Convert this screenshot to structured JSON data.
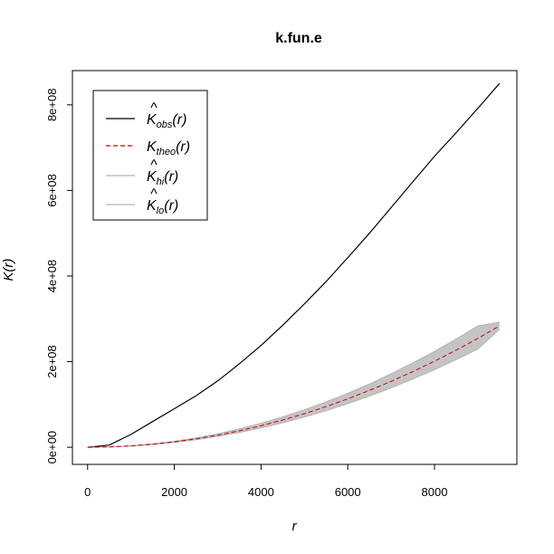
{
  "chart_data": {
    "type": "line",
    "title": "k.fun.e",
    "xlabel": "r",
    "ylabel": "K(r)",
    "xlim": [
      -350,
      9900
    ],
    "ylim": [
      -40000000,
      880000000
    ],
    "x_ticks": [
      0,
      2000,
      4000,
      6000,
      8000
    ],
    "x_tick_labels": [
      "0",
      "2000",
      "4000",
      "6000",
      "8000"
    ],
    "y_ticks": [
      0,
      200000000,
      400000000,
      600000000,
      800000000
    ],
    "y_tick_labels": [
      "0e+00",
      "2e+08",
      "4e+08",
      "6e+08",
      "8e+08"
    ],
    "grid": false,
    "legend_position": "top-left",
    "legend": [
      {
        "key": "obs",
        "base": "K",
        "hat": true,
        "sub": "obs",
        "arg": "(r)",
        "color": "#000000",
        "dash": "solid"
      },
      {
        "key": "theo",
        "base": "K",
        "hat": false,
        "sub": "theo",
        "arg": "(r)",
        "color": "#cc0000",
        "dash": "dashed"
      },
      {
        "key": "hi",
        "base": "K",
        "hat": true,
        "sub": "hi",
        "arg": "(r)",
        "color": "#b3b3b3",
        "dash": "solid"
      },
      {
        "key": "lo",
        "base": "K",
        "hat": true,
        "sub": "lo",
        "arg": "(r)",
        "color": "#b3b3b3",
        "dash": "solid"
      }
    ],
    "x": [
      0,
      500,
      1000,
      1500,
      2000,
      2500,
      3000,
      3500,
      4000,
      4500,
      5000,
      5500,
      6000,
      6500,
      7000,
      7500,
      8000,
      8500,
      9000,
      9500
    ],
    "series": [
      {
        "name": "obs",
        "color": "#000000",
        "dash": "solid",
        "values": [
          0,
          5000000,
          30000000,
          60000000,
          90000000,
          120000000,
          155000000,
          195000000,
          238000000,
          285000000,
          335000000,
          387000000,
          443000000,
          500000000,
          560000000,
          620000000,
          680000000,
          735000000,
          792000000,
          850000000
        ]
      },
      {
        "name": "hi",
        "color": "#b3b3b3",
        "dash": "solid",
        "values": [
          0,
          900000,
          3500000,
          7900000,
          14000000,
          21900000,
          31500000,
          42900000,
          56000000,
          70900000,
          87500000,
          105900000,
          126000000,
          147900000,
          171500000,
          196900000,
          224000000,
          252900000,
          283500000,
          292000000
        ]
      },
      {
        "name": "lo",
        "color": "#b3b3b3",
        "dash": "solid",
        "values": [
          0,
          700000,
          2800000,
          6400000,
          11300000,
          17700000,
          25500000,
          34700000,
          45300000,
          57300000,
          70800000,
          85600000,
          101900000,
          119700000,
          138800000,
          159400000,
          181300000,
          204700000,
          229400000,
          276000000
        ]
      },
      {
        "name": "theo",
        "color": "#cc0000",
        "dash": "dashed",
        "values": [
          0,
          785000,
          3140000,
          7070000,
          12570000,
          19630000,
          28270000,
          38480000,
          50270000,
          63620000,
          78540000,
          95030000,
          113100000,
          132730000,
          153940000,
          176710000,
          201060000,
          226980000,
          254470000,
          283530000
        ]
      }
    ]
  }
}
